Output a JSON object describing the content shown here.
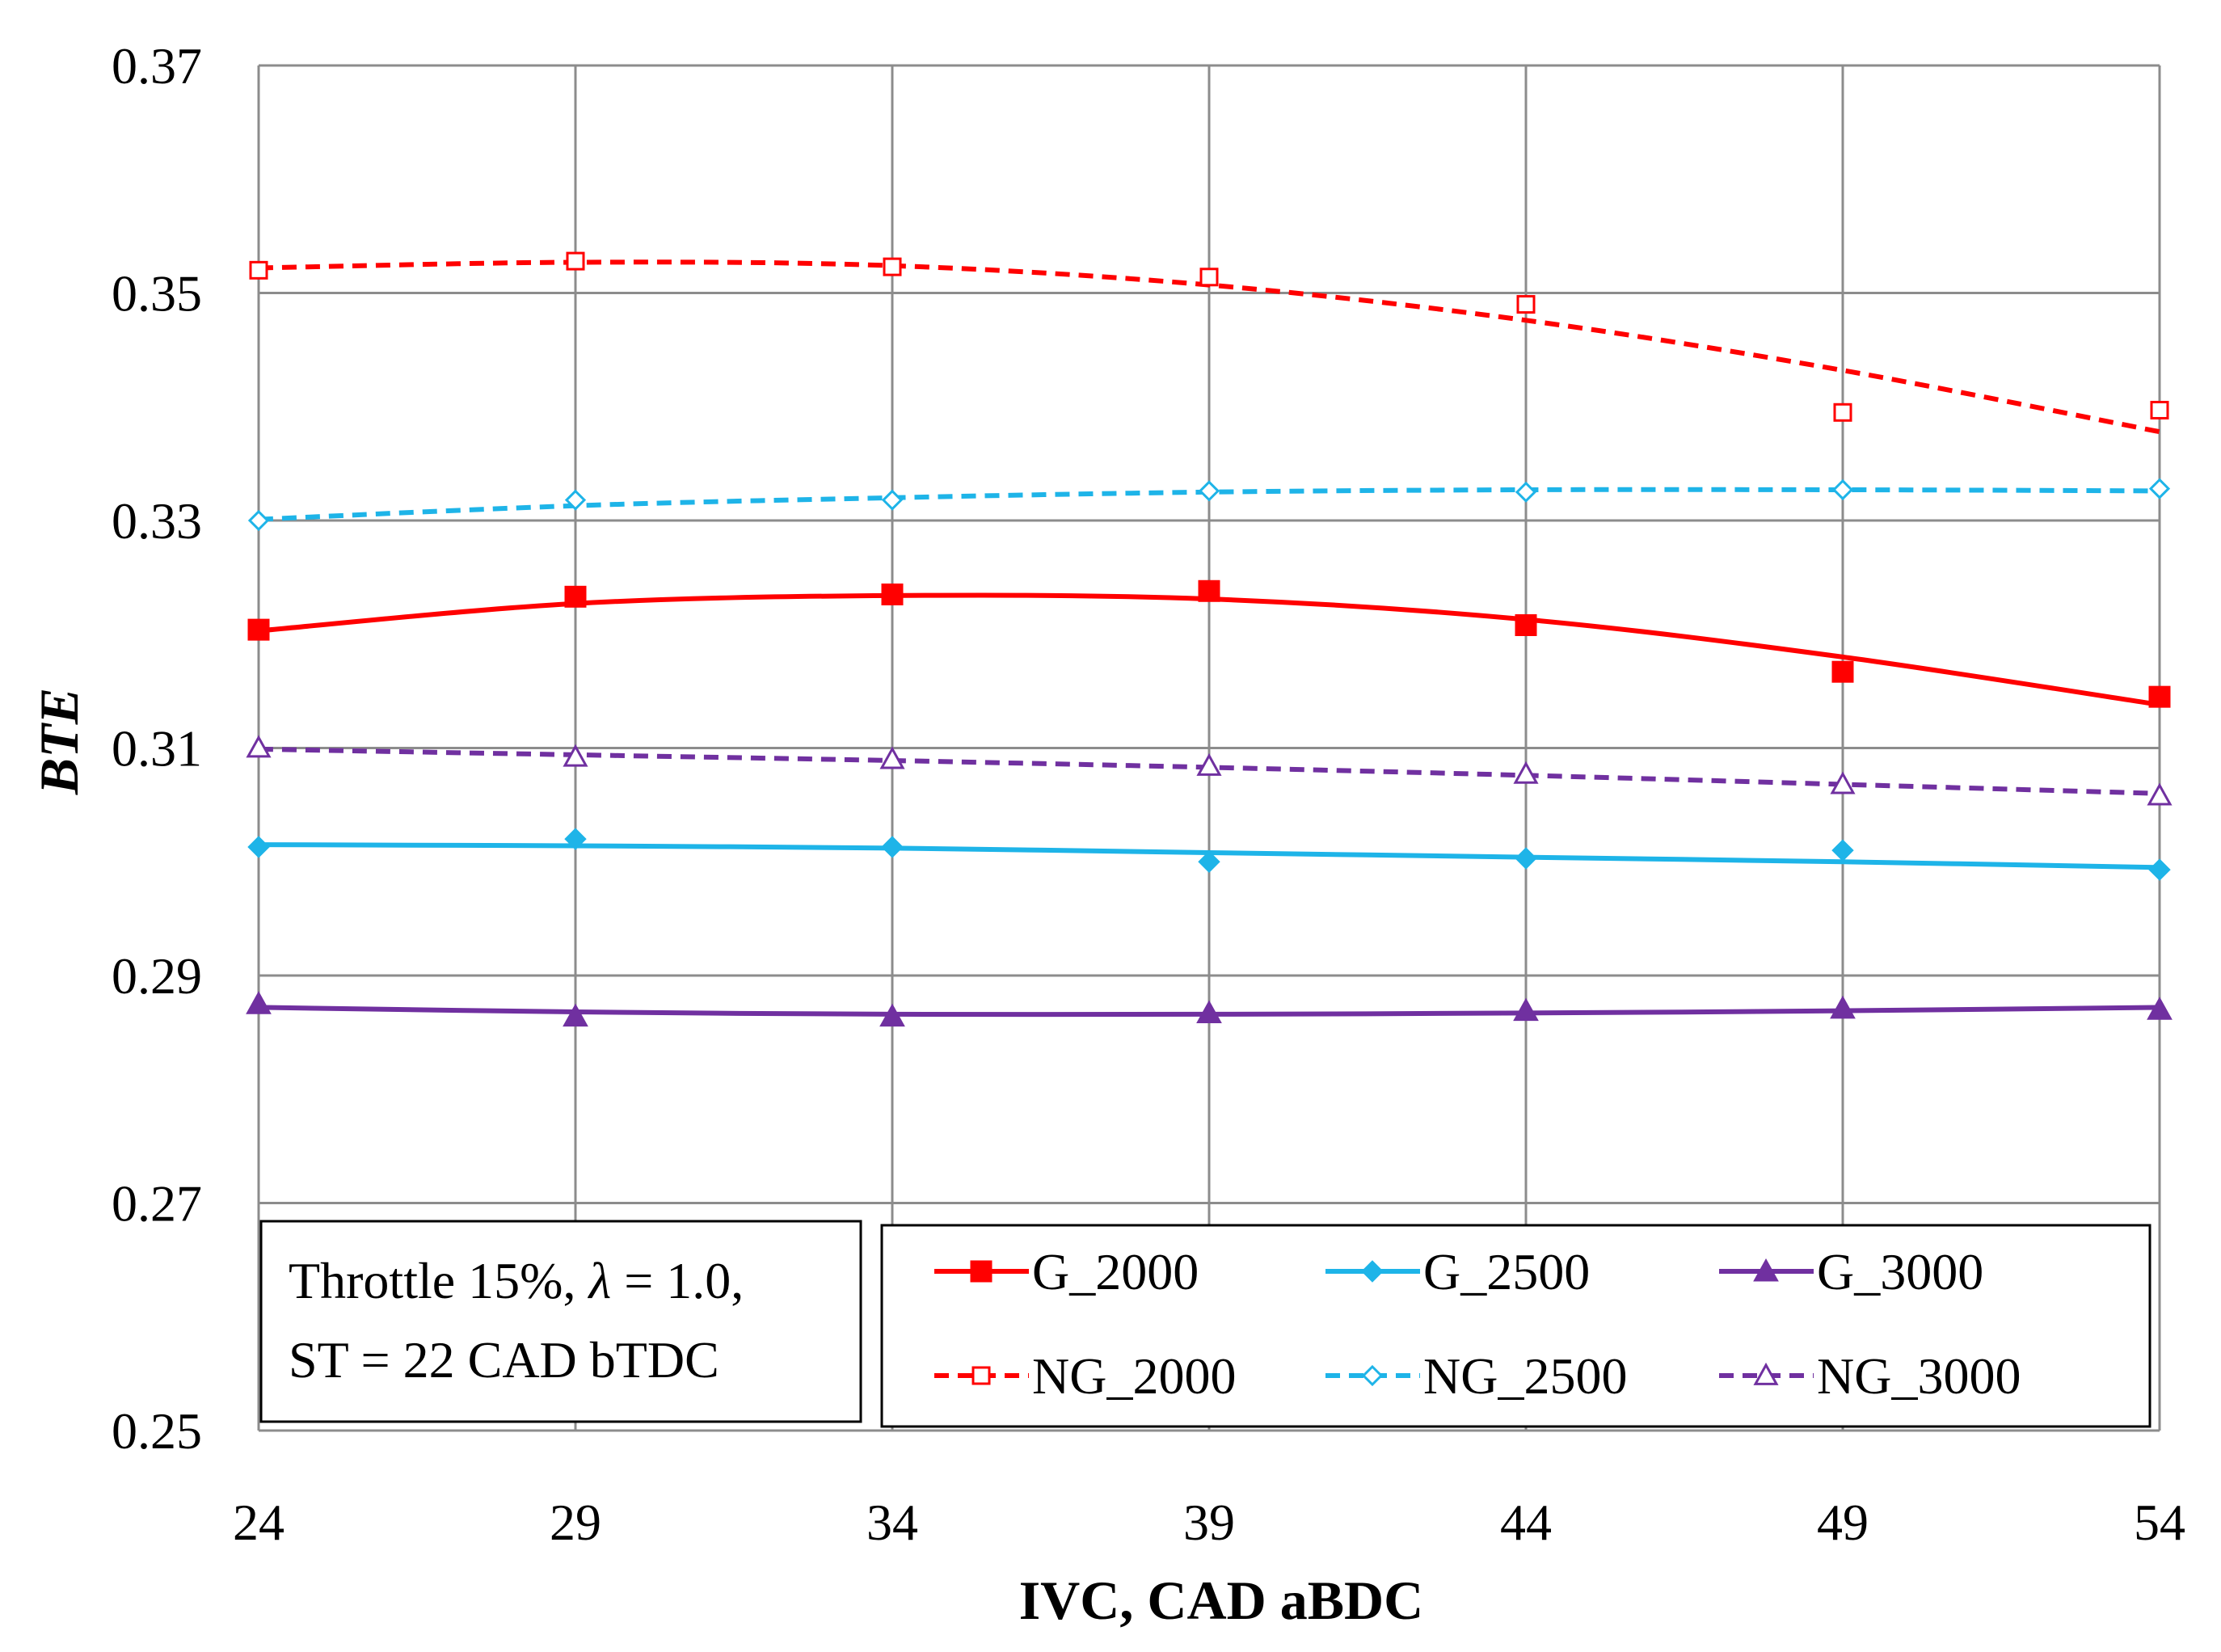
{
  "chart_data": {
    "type": "line",
    "xlabel": "IVC, CAD aBDC",
    "ylabel": "BTE",
    "x": [
      24,
      29,
      34,
      39,
      44,
      49,
      54
    ],
    "x_ticks": [
      "24",
      "29",
      "34",
      "39",
      "44",
      "49",
      "54"
    ],
    "y_ticks": [
      "0.25",
      "0.27",
      "0.29",
      "0.31",
      "0.33",
      "0.35",
      "0.37"
    ],
    "xlim": [
      24,
      54
    ],
    "ylim": [
      0.25,
      0.37
    ],
    "grid": true,
    "annotation": {
      "line1_prefix": "Throttle 15%, ",
      "line1_symbol": "λ",
      "line1_suffix": " = 1.0,",
      "line2": "ST = 22 CAD bTDC"
    },
    "series": [
      {
        "name": "G_2000",
        "color": "#FF0000",
        "dash": "solid",
        "marker": "filled-square",
        "values": [
          0.3204,
          0.3233,
          0.3235,
          0.3238,
          0.3208,
          0.3167,
          0.3145
        ],
        "trend": [
          0.3203,
          0.3227,
          0.3234,
          0.3231,
          0.3213,
          0.318,
          0.3138
        ]
      },
      {
        "name": "G_2500",
        "color": "#1EB4E8",
        "dash": "solid",
        "marker": "filled-diamond",
        "values": [
          0.3013,
          0.302,
          0.3013,
          0.3,
          0.3003,
          0.301,
          0.2993
        ],
        "trend": [
          0.3015,
          0.3014,
          0.3012,
          0.3008,
          0.3004,
          0.3,
          0.2995
        ]
      },
      {
        "name": "G_3000",
        "color": "#7030A0",
        "dash": "solid",
        "marker": "filled-triangle",
        "values": [
          0.2875,
          0.2864,
          0.2864,
          0.2867,
          0.2869,
          0.2871,
          0.287
        ],
        "trend": [
          0.2872,
          0.2868,
          0.2866,
          0.2866,
          0.2867,
          0.2869,
          0.2872
        ]
      },
      {
        "name": "NG_2000",
        "color": "#FF0000",
        "dash": "dashed",
        "marker": "open-square",
        "values": [
          0.352,
          0.3528,
          0.3523,
          0.3514,
          0.349,
          0.3395,
          0.3397
        ],
        "trend": [
          0.3522,
          0.3527,
          0.3524,
          0.3507,
          0.3476,
          0.3432,
          0.3378
        ]
      },
      {
        "name": "NG_2500",
        "color": "#1EB4E8",
        "dash": "dashed",
        "marker": "open-diamond",
        "values": [
          0.33,
          0.3318,
          0.3318,
          0.3326,
          0.3325,
          0.3327,
          0.3328
        ],
        "trend": [
          0.3301,
          0.3313,
          0.332,
          0.3325,
          0.3327,
          0.3327,
          0.3326
        ]
      },
      {
        "name": "NG_3000",
        "color": "#7030A0",
        "dash": "dashed",
        "marker": "open-triangle",
        "values": [
          0.31,
          0.3092,
          0.309,
          0.3084,
          0.3077,
          0.3068,
          0.3058
        ],
        "trend": [
          0.3099,
          0.3094,
          0.3089,
          0.3083,
          0.3076,
          0.3068,
          0.306
        ]
      }
    ]
  }
}
